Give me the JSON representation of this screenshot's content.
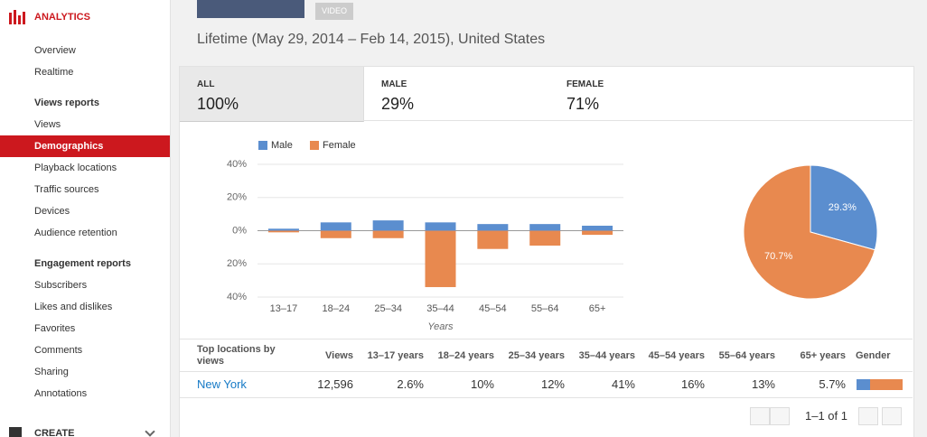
{
  "sidebar": {
    "title": "ANALYTICS",
    "items": [
      "Overview",
      "Realtime",
      "Views reports",
      "Views",
      "Demographics",
      "Playback locations",
      "Traffic sources",
      "Devices",
      "Audience retention",
      "Engagement reports",
      "Subscribers",
      "Likes and dislikes",
      "Favorites",
      "Comments",
      "Sharing",
      "Annotations"
    ],
    "create": "CREATE"
  },
  "video": {
    "badge": "VIDEO"
  },
  "header": {
    "title": "Lifetime (May 29, 2014 – Feb 14, 2015), United States"
  },
  "tabs": [
    {
      "label": "ALL",
      "value": "100%"
    },
    {
      "label": "MALE",
      "value": "29%"
    },
    {
      "label": "FEMALE",
      "value": "71%"
    }
  ],
  "chart_data": [
    {
      "type": "bar",
      "x_label": "Years",
      "categories": [
        "13–17",
        "18–24",
        "25–34",
        "35–44",
        "45–54",
        "55–64",
        "65+"
      ],
      "series": [
        {
          "name": "Male",
          "color": "#5b8ecf",
          "values": [
            1.2,
            5,
            6.2,
            5,
            4,
            4,
            3
          ]
        },
        {
          "name": "Female",
          "color": "#e8894f",
          "values": [
            -1,
            -4.5,
            -4.5,
            -34,
            -11,
            -9,
            -2.5
          ]
        }
      ],
      "ylim": [
        -40,
        40
      ],
      "yticks": [
        {
          "value": 40,
          "label": "40%"
        },
        {
          "value": 20,
          "label": "20%"
        },
        {
          "value": 0,
          "label": "0%"
        },
        {
          "value": -20,
          "label": "20%"
        },
        {
          "value": -40,
          "label": "40%"
        }
      ],
      "grid": true
    },
    {
      "type": "pie",
      "categories": [
        "Male",
        "Female"
      ],
      "values": [
        29.3,
        70.7
      ],
      "value_labels": [
        "29.3%",
        "70.7%"
      ],
      "colors": [
        "#5b8ecf",
        "#e8894f"
      ]
    }
  ],
  "table": {
    "headers": [
      "Top locations by views",
      "Views",
      "13–17 years",
      "18–24 years",
      "25–34 years",
      "35–44 years",
      "45–54 years",
      "55–64 years",
      "65+ years",
      "Gender"
    ],
    "rows": [
      [
        "New York",
        "12,596",
        "2.6%",
        "10%",
        "12%",
        "41%",
        "16%",
        "13%",
        "5.7%"
      ]
    ]
  },
  "pagination": {
    "label": "1–1 of 1"
  }
}
